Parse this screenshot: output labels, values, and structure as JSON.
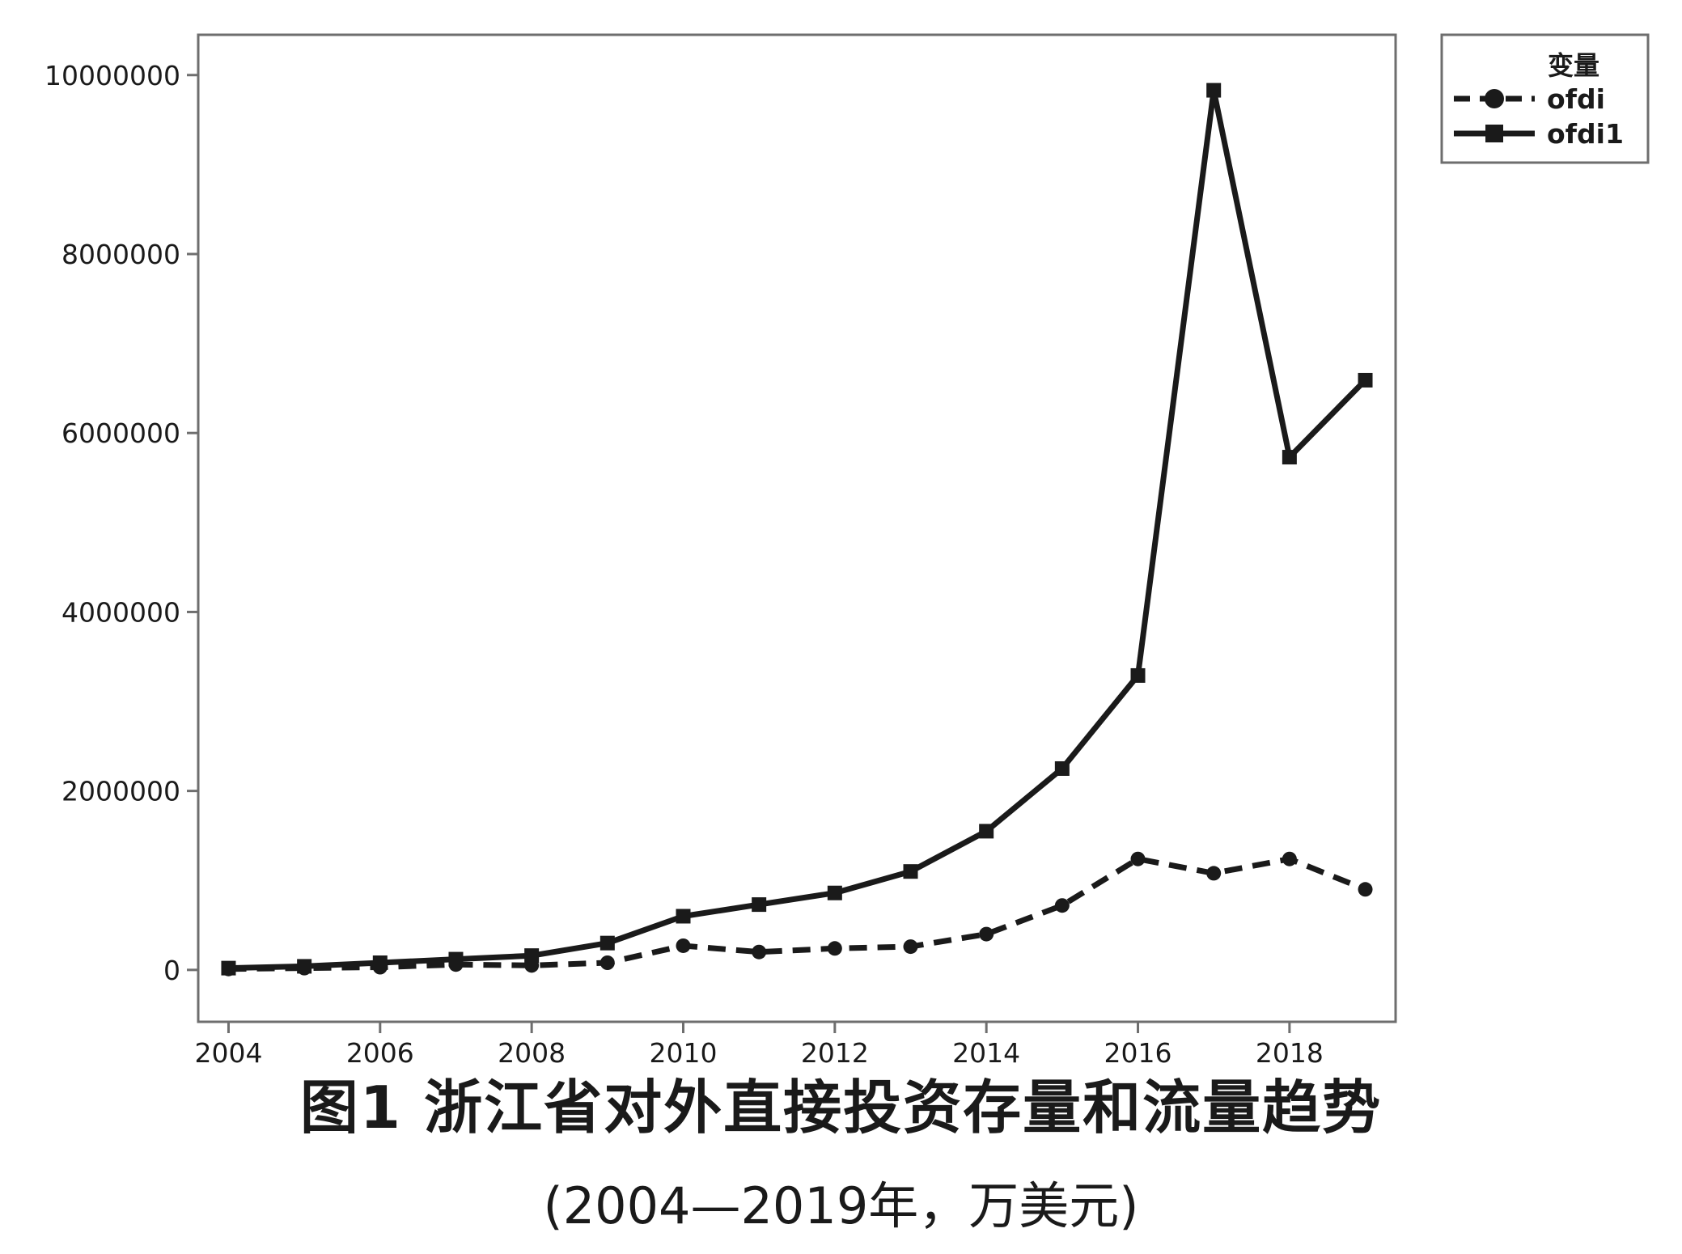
{
  "chart_data": {
    "type": "line",
    "title": "图1  浙江省对外直接投资存量和流量趋势",
    "subtitle": "(2004—2019年，万美元)",
    "xlabel": "",
    "ylabel": "",
    "x": [
      2004,
      2005,
      2006,
      2007,
      2008,
      2009,
      2010,
      2011,
      2012,
      2013,
      2014,
      2015,
      2016,
      2017,
      2018,
      2019
    ],
    "xlim": [
      2003.6,
      2019.4
    ],
    "ylim": [
      -580000,
      10450000
    ],
    "x_ticks": [
      "2004",
      "2006",
      "2008",
      "2010",
      "2012",
      "2014",
      "2016",
      "2018"
    ],
    "y_ticks": [
      "0",
      "2000000",
      "4000000",
      "6000000",
      "8000000",
      "10000000"
    ],
    "grid": false,
    "legend": {
      "title": "变量",
      "position": "top-right-outside"
    },
    "series": [
      {
        "name": "ofdi",
        "style": "dashed",
        "marker": "circle",
        "color": "#1a1a1a",
        "values": [
          10000,
          20000,
          30000,
          60000,
          50000,
          80000,
          270000,
          200000,
          240000,
          260000,
          400000,
          720000,
          1240000,
          1080000,
          1240000,
          900000
        ]
      },
      {
        "name": "ofdi1",
        "style": "solid",
        "marker": "square",
        "color": "#1a1a1a",
        "values": [
          20000,
          40000,
          80000,
          120000,
          160000,
          300000,
          600000,
          730000,
          860000,
          1100000,
          1550000,
          2250000,
          3290000,
          9830000,
          5730000,
          6590000
        ]
      }
    ]
  }
}
